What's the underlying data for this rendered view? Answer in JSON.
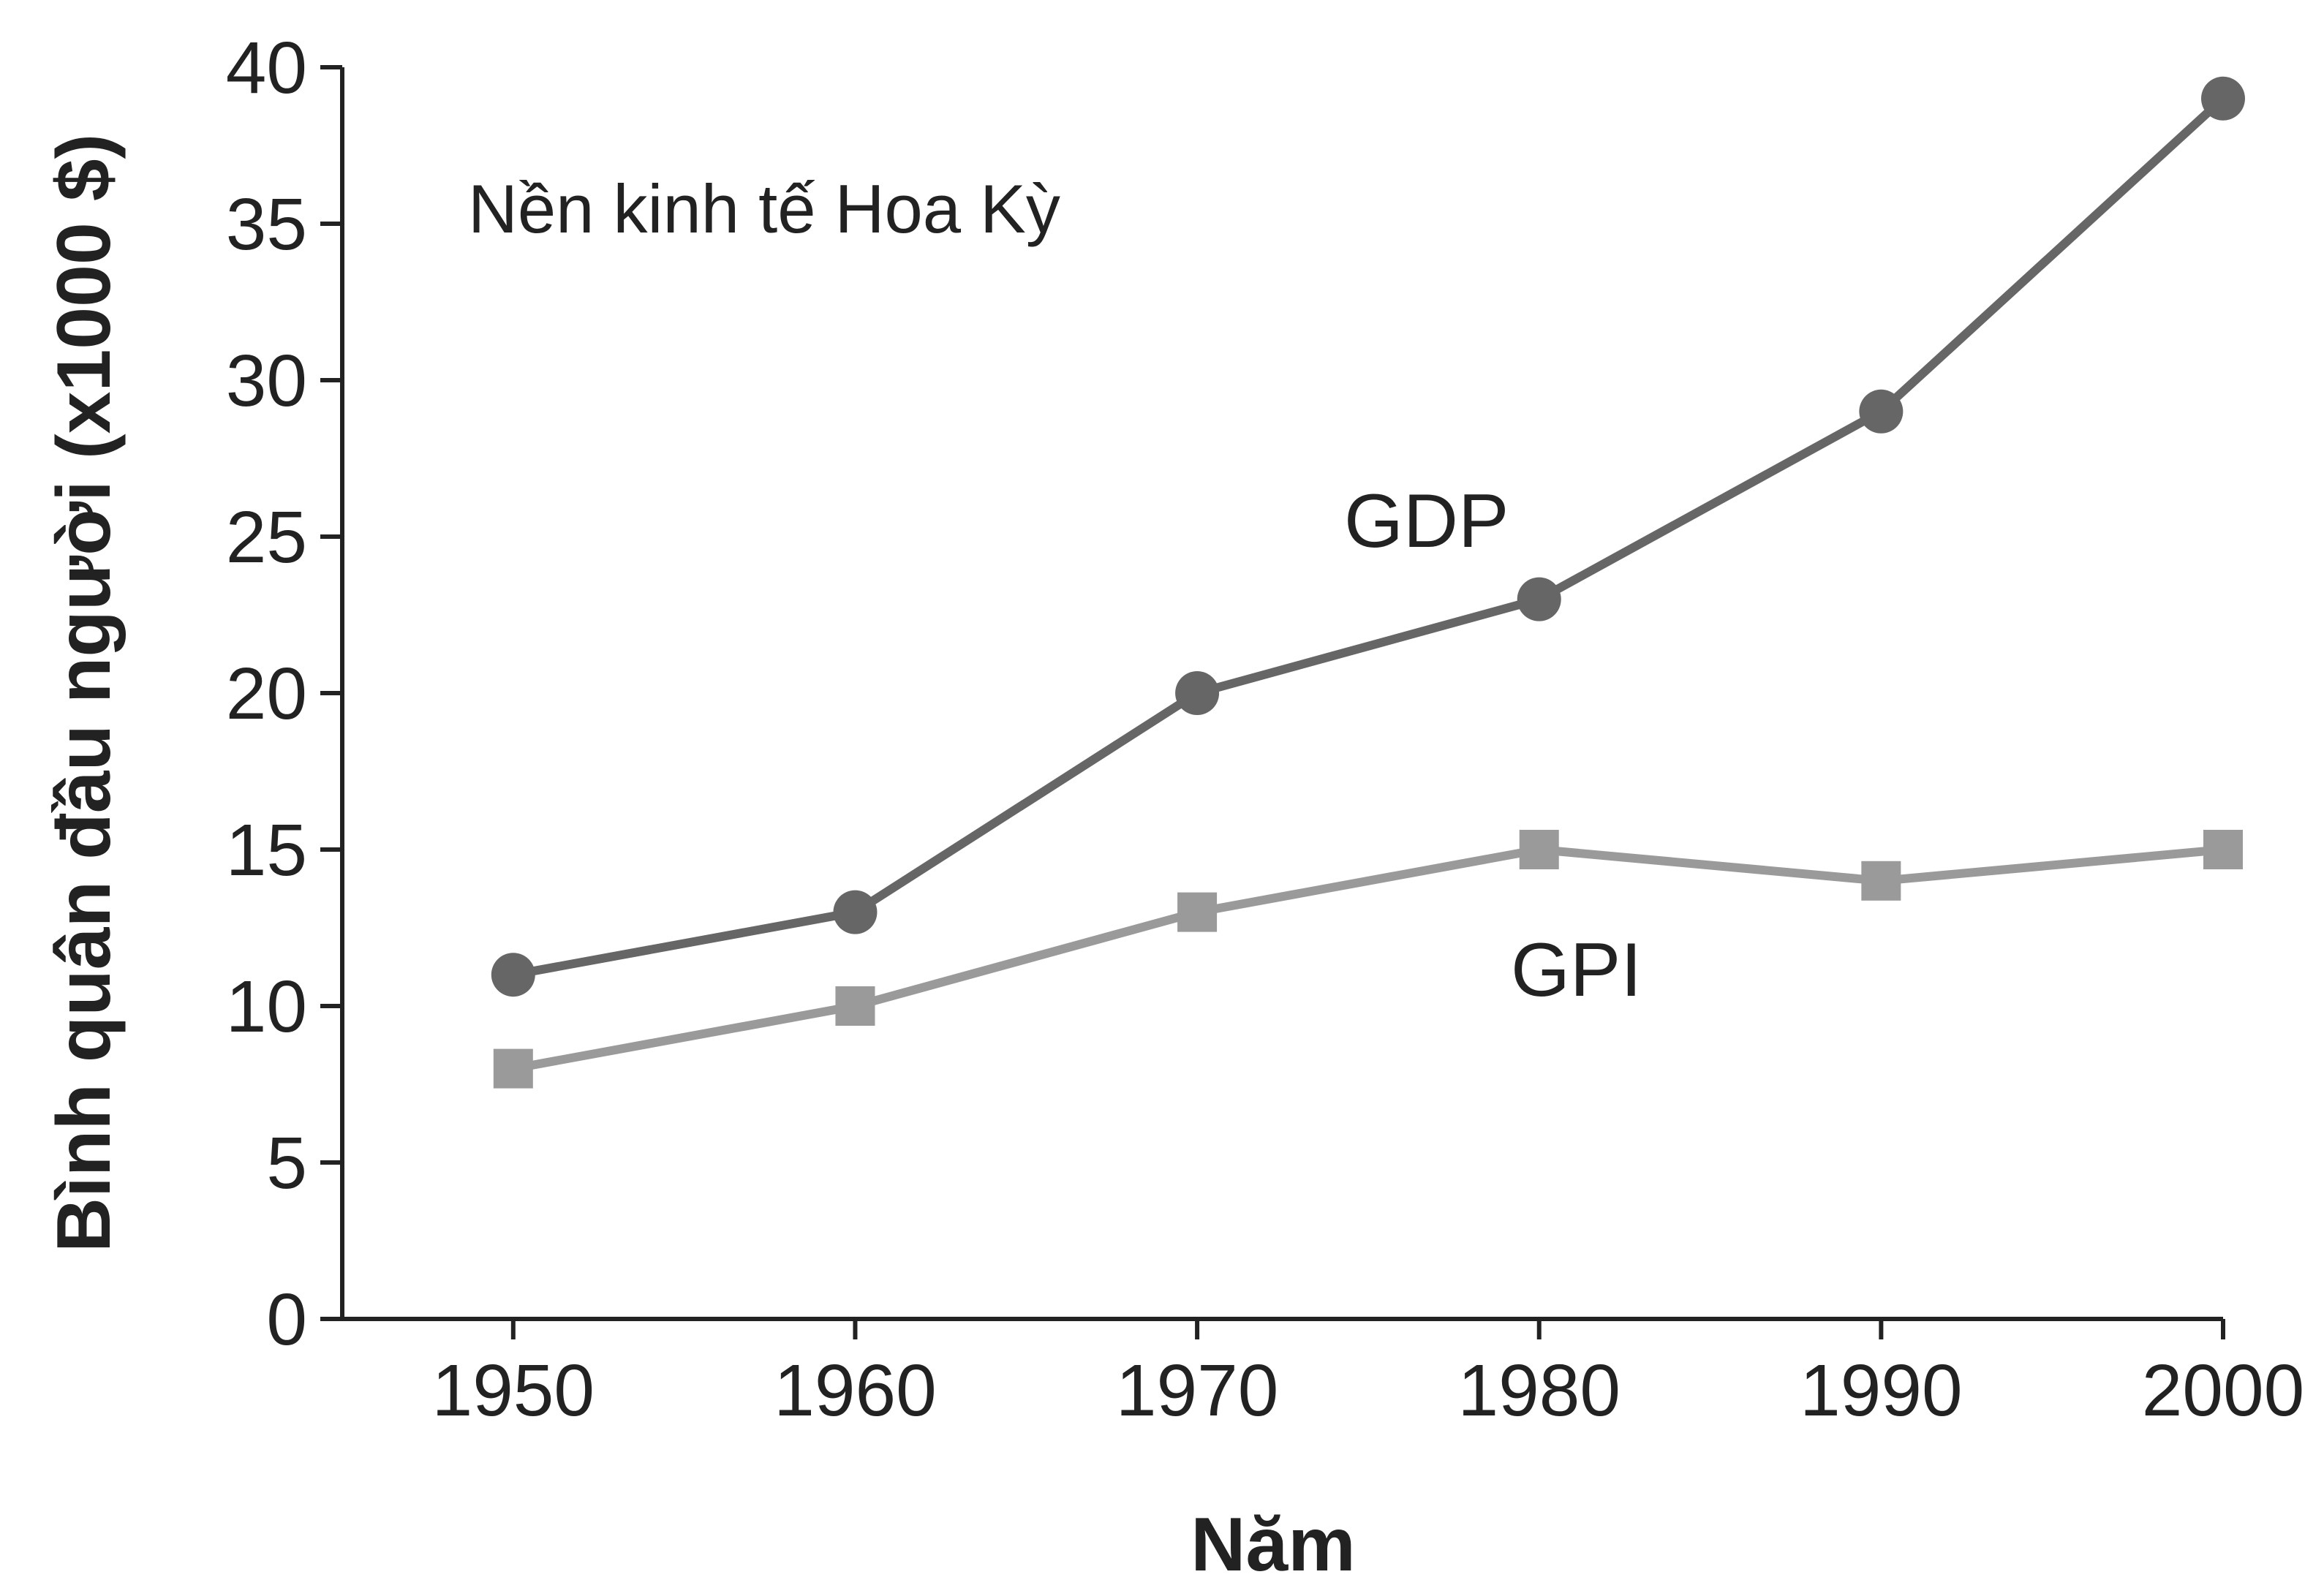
{
  "chart_data": {
    "type": "line",
    "title": "Nền kinh tế Hoa Kỳ",
    "xlabel": "Năm",
    "ylabel": "Bình quân đầu người (x1000 $)",
    "x": [
      1950,
      1960,
      1970,
      1980,
      1990,
      2000
    ],
    "x_ticks": [
      "1950",
      "1960",
      "1970",
      "1980",
      "1990",
      "2000"
    ],
    "y_ticks": [
      "0",
      "5",
      "10",
      "15",
      "20",
      "25",
      "30",
      "35",
      "40"
    ],
    "ylim": [
      0,
      40
    ],
    "xlim": [
      1945,
      2000
    ],
    "grid": false,
    "series": [
      {
        "name": "GDP",
        "marker": "circle",
        "color": "#666666",
        "values": [
          11,
          13,
          20,
          23,
          29,
          39
        ]
      },
      {
        "name": "GPI",
        "marker": "square",
        "color": "#9a9a9a",
        "values": [
          8,
          10,
          13,
          15,
          14,
          15
        ]
      }
    ]
  }
}
